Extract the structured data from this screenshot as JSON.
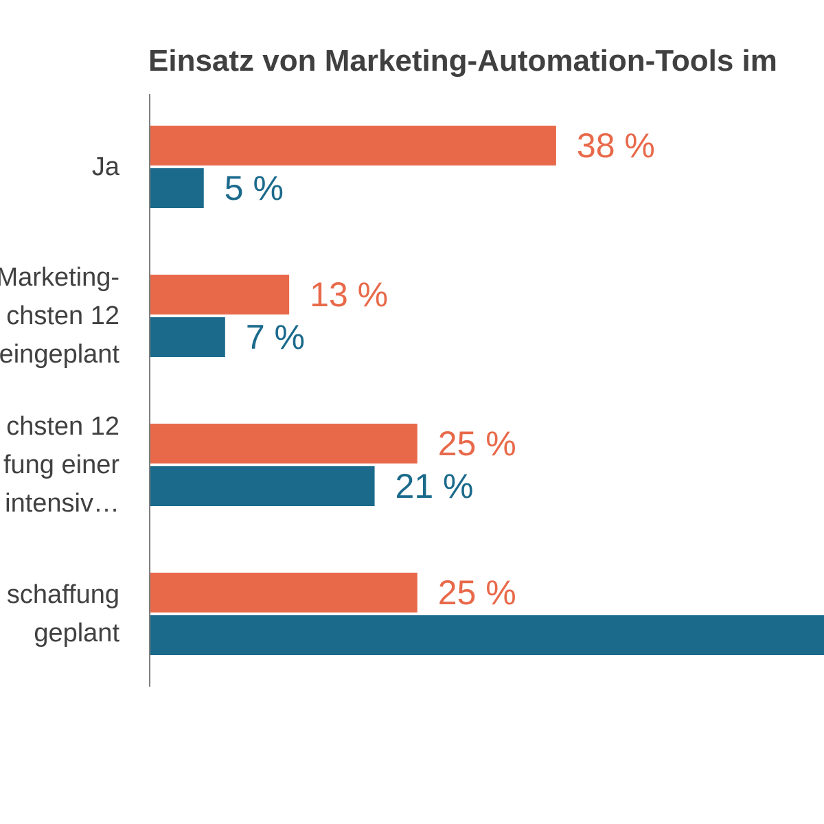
{
  "chart_data": {
    "type": "bar",
    "orientation": "horizontal",
    "title": "Einsatz von Marketing-Automation-Tools im",
    "categories": [
      [
        "Ja"
      ],
      [
        "Marketing-",
        "chsten 12",
        "eingeplant"
      ],
      [
        "chsten 12",
        "fung einer",
        "ls intensiv…"
      ],
      [
        "schaffung",
        "geplant"
      ]
    ],
    "series": [
      {
        "values": [
          38,
          13,
          25,
          25
        ],
        "labels": [
          "38 %",
          "13 %",
          "25 %",
          "25 %"
        ],
        "color": "#e8694a"
      },
      {
        "values": [
          5,
          7,
          21,
          66
        ],
        "labels": [
          "5 %",
          "7 %",
          "21 %",
          ""
        ],
        "color": "#1b6a8c"
      }
    ],
    "xlim": [
      0,
      66
    ],
    "grid": false,
    "legend": "none"
  }
}
